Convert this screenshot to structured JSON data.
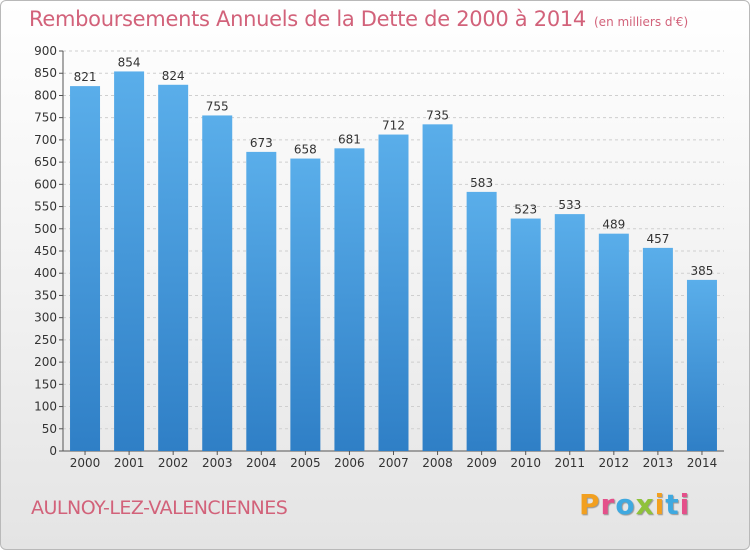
{
  "header": {
    "title": "Remboursements Annuels de la Dette de 2000 à 2014",
    "subtitle": "(en milliers d'€)"
  },
  "footer": {
    "commune": "AULNOY-LEZ-VALENCIENNES",
    "logo": "Proxiti"
  },
  "colors": {
    "bar_top": "#5aaeea",
    "bar_bottom": "#2f7fc6",
    "title": "#d2627a",
    "logo_letters": [
      "#f2a020",
      "#e4508a",
      "#3fa9e0",
      "#8fc23a",
      "#f2a020",
      "#3fa9e0",
      "#e4508a"
    ]
  },
  "chart_data": {
    "type": "bar",
    "title": "Remboursements Annuels de la Dette de 2000 à 2014",
    "subtitle": "(en milliers d'€)",
    "categories": [
      "2000",
      "2001",
      "2002",
      "2003",
      "2004",
      "2005",
      "2006",
      "2007",
      "2008",
      "2009",
      "2010",
      "2011",
      "2012",
      "2013",
      "2014"
    ],
    "values": [
      821,
      854,
      824,
      755,
      673,
      658,
      681,
      712,
      735,
      583,
      523,
      533,
      489,
      457,
      385
    ],
    "ylim": [
      0,
      900
    ],
    "yticks": [
      0,
      50,
      100,
      150,
      200,
      250,
      300,
      350,
      400,
      450,
      500,
      550,
      600,
      650,
      700,
      750,
      800,
      850,
      900
    ],
    "grid": true,
    "legend": "none"
  }
}
